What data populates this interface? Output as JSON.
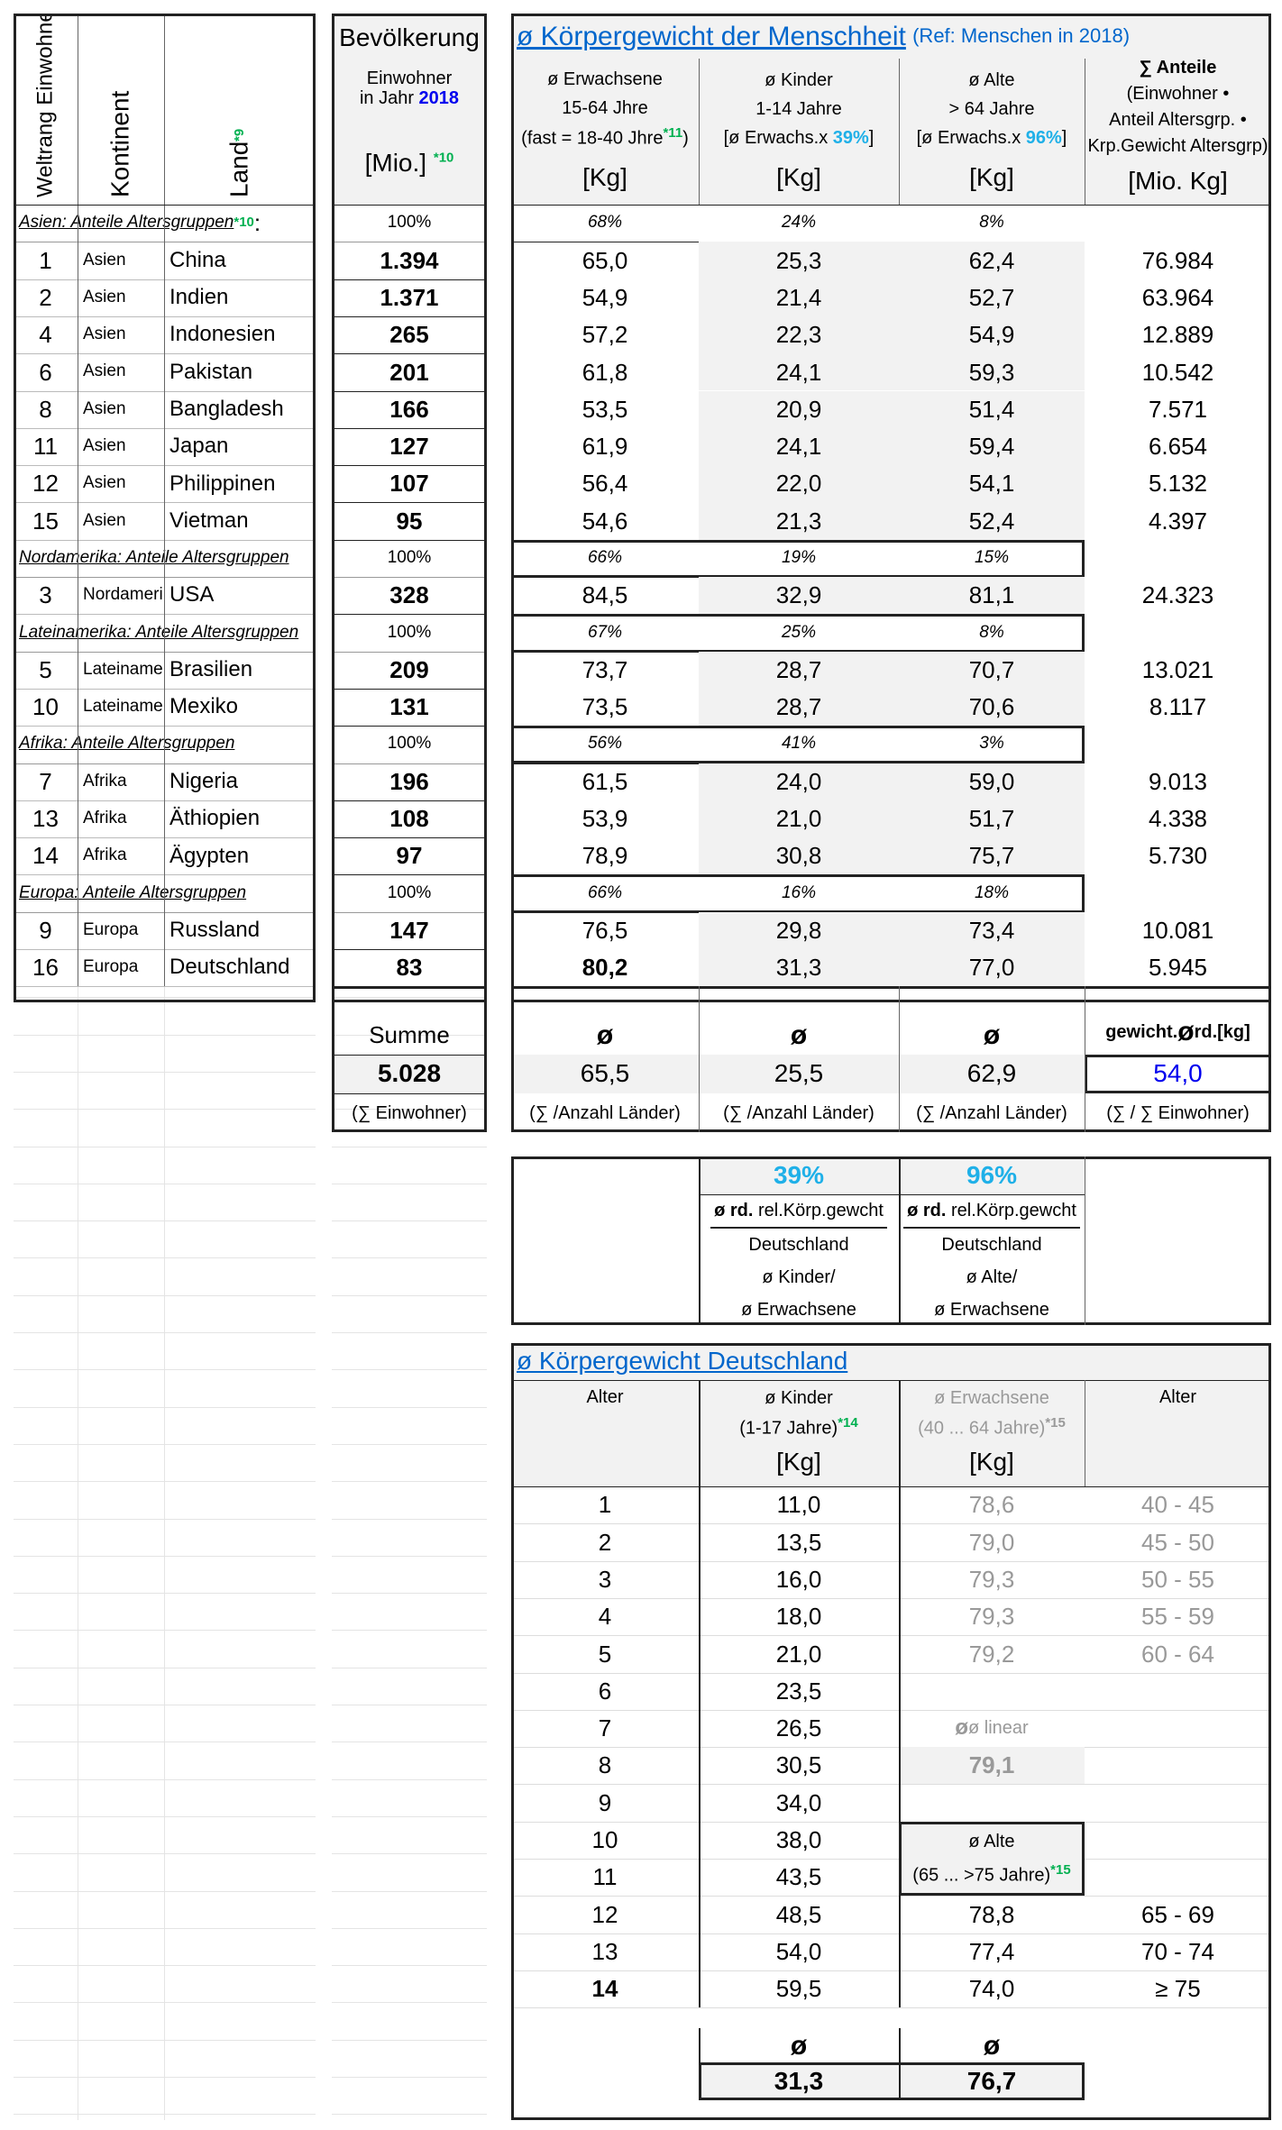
{
  "header": {
    "rank": "Weltrang Einwohner",
    "continent": "Kontinent",
    "land": "Land",
    "land_note": "*9",
    "pop_title": "Bevölkerung",
    "pop_sub1": "Einwohner",
    "pop_sub2": "in Jahr",
    "pop_year": "2018",
    "pop_unit": "[Mio.]",
    "pop_note": "*10",
    "main_title": "ø Körpergewicht der Menschheit",
    "main_ref": "(Ref: Menschen in 2018)",
    "adult": {
      "l1": "ø Erwachsene",
      "l2": "15-64 Jhre",
      "l3": "(fast = 18-40 Jhre",
      "note": "*11",
      "l3end": ")",
      "unit": "[Kg]"
    },
    "child": {
      "l1": "ø Kinder",
      "l2": "1-14 Jahre",
      "l3": "[ø Erwachs.x",
      "pct": "39%",
      "l3end": "]",
      "unit": "[Kg]"
    },
    "old": {
      "l1": "ø Alte",
      "l2": "> 64 Jahre",
      "l3": "[ø Erwachs.x",
      "pct": "96%",
      "l3end": "]",
      "unit": "[Kg]"
    },
    "sum": {
      "l1": "∑ Anteile",
      "l2": "(Einwohner •",
      "l3": "Anteil Altersgrp. •",
      "l4": "Krp.Gewicht Altersgrp)",
      "unit": "[Mio. Kg]"
    }
  },
  "groups": [
    {
      "label": "Asien: Anteile Altersgruppen",
      "note": "*10",
      "suffix": " :",
      "pop": "100%",
      "shares": [
        "68%",
        "24%",
        "8%"
      ],
      "rows": [
        {
          "rank": "1",
          "continent": "Asien",
          "land": "China",
          "pop": "1.394",
          "adult": "65,0",
          "child": "25,3",
          "old": "62,4",
          "sum": "76.984"
        },
        {
          "rank": "2",
          "continent": "Asien",
          "land": "Indien",
          "pop": "1.371",
          "adult": "54,9",
          "child": "21,4",
          "old": "52,7",
          "sum": "63.964"
        },
        {
          "rank": "4",
          "continent": "Asien",
          "land": "Indonesien",
          "pop": "265",
          "adult": "57,2",
          "child": "22,3",
          "old": "54,9",
          "sum": "12.889"
        },
        {
          "rank": "6",
          "continent": "Asien",
          "land": "Pakistan",
          "pop": "201",
          "adult": "61,8",
          "child": "24,1",
          "old": "59,3",
          "sum": "10.542"
        },
        {
          "rank": "8",
          "continent": "Asien",
          "land": "Bangladesh",
          "pop": "166",
          "adult": "53,5",
          "child": "20,9",
          "old": "51,4",
          "sum": "7.571"
        },
        {
          "rank": "11",
          "continent": "Asien",
          "land": "Japan",
          "pop": "127",
          "adult": "61,9",
          "child": "24,1",
          "old": "59,4",
          "sum": "6.654"
        },
        {
          "rank": "12",
          "continent": "Asien",
          "land": "Philippinen",
          "pop": "107",
          "adult": "56,4",
          "child": "22,0",
          "old": "54,1",
          "sum": "5.132"
        },
        {
          "rank": "15",
          "continent": "Asien",
          "land": "Vietman",
          "pop": "95",
          "adult": "54,6",
          "child": "21,3",
          "old": "52,4",
          "sum": "4.397"
        }
      ]
    },
    {
      "label": "Nordamerika: Anteile Altersgruppen",
      "pop": "100%",
      "shares": [
        "66%",
        "19%",
        "15%"
      ],
      "rows": [
        {
          "rank": "3",
          "continent": "Nordamerika",
          "land": "USA",
          "pop": "328",
          "adult": "84,5",
          "child": "32,9",
          "old": "81,1",
          "sum": "24.323"
        }
      ]
    },
    {
      "label": "Lateinamerika: Anteile Altersgruppen",
      "pop": "100%",
      "shares": [
        "67%",
        "25%",
        "8%"
      ],
      "rows": [
        {
          "rank": "5",
          "continent": "Lateinamerika",
          "land": "Brasilien",
          "pop": "209",
          "adult": "73,7",
          "child": "28,7",
          "old": "70,7",
          "sum": "13.021"
        },
        {
          "rank": "10",
          "continent": "Lateinamerika",
          "land": "Mexiko",
          "pop": "131",
          "adult": "73,5",
          "child": "28,7",
          "old": "70,6",
          "sum": "8.117"
        }
      ]
    },
    {
      "label": "Afrika: Anteile Altersgruppen",
      "pop": "100%",
      "shares": [
        "56%",
        "41%",
        "3%"
      ],
      "rows": [
        {
          "rank": "7",
          "continent": "Afrika",
          "land": "Nigeria",
          "pop": "196",
          "adult": "61,5",
          "child": "24,0",
          "old": "59,0",
          "sum": "9.013"
        },
        {
          "rank": "13",
          "continent": "Afrika",
          "land": "Äthiopien",
          "pop": "108",
          "adult": "53,9",
          "child": "21,0",
          "old": "51,7",
          "sum": "4.338"
        },
        {
          "rank": "14",
          "continent": "Afrika",
          "land": "Ägypten",
          "pop": "97",
          "adult": "78,9",
          "child": "30,8",
          "old": "75,7",
          "sum": "5.730"
        }
      ]
    },
    {
      "label": "Europa: Anteile Altersgruppen",
      "pop": "100%",
      "shares": [
        "66%",
        "16%",
        "18%"
      ],
      "rows": [
        {
          "rank": "9",
          "continent": "Europa",
          "land": "Russland",
          "pop": "147",
          "adult": "76,5",
          "child": "29,8",
          "old": "73,4",
          "sum": "10.081"
        },
        {
          "rank": "16",
          "continent": "Europa",
          "land": "Deutschland",
          "pop": "83",
          "adult": "80,2",
          "child": "31,3",
          "old": "77,0",
          "sum": "5.945"
        }
      ]
    }
  ],
  "summary": {
    "pop_label": "Summe",
    "pop_value": "5.028",
    "pop_note": "(∑ Einwohner)",
    "avg_symbol": "ø",
    "adult": "65,5",
    "child": "25,5",
    "old": "62,9",
    "count_note": "(∑ /Anzahl Länder)",
    "weighted_label_a": "gewicht.",
    "weighted_label_b": "rd.[kg]",
    "weighted": "54,0",
    "weighted_note": "(∑ / ∑ Einwohner)"
  },
  "relative": {
    "child_pct": "39%",
    "old_pct": "96%",
    "child_lines": [
      "ø rd.",
      "rel.Körp.gewcht",
      "Deutschland",
      "ø Kinder/",
      "ø Erwachsene"
    ],
    "old_lines": [
      "ø rd.",
      "rel.Körp.gewcht",
      "Deutschland",
      "ø Alte/",
      "ø Erwachsene"
    ]
  },
  "germany": {
    "title": "ø Körpergewicht Deutschland",
    "age_label": "Alter",
    "child_head": [
      "ø Kinder",
      "(1-17 Jahre)",
      "*14",
      "[Kg]"
    ],
    "adult_head": [
      "ø Erwachsene",
      "(40 ... 64 Jahre)",
      "*15",
      "[Kg]"
    ],
    "age_label2": "Alter",
    "rows": [
      {
        "age": "1",
        "child": "11,0",
        "adult": "78,6",
        "range": "40 - 45"
      },
      {
        "age": "2",
        "child": "13,5",
        "adult": "79,0",
        "range": "45 - 50"
      },
      {
        "age": "3",
        "child": "16,0",
        "adult": "79,3",
        "range": "50 - 55"
      },
      {
        "age": "4",
        "child": "18,0",
        "adult": "79,3",
        "range": "55 - 59"
      },
      {
        "age": "5",
        "child": "21,0",
        "adult": "79,2",
        "range": "60 - 64"
      },
      {
        "age": "6",
        "child": "23,5"
      },
      {
        "age": "7",
        "child": "26,5"
      },
      {
        "age": "8",
        "child": "30,5"
      },
      {
        "age": "9",
        "child": "34,0"
      },
      {
        "age": "10",
        "child": "38,0"
      },
      {
        "age": "11",
        "child": "43,5"
      },
      {
        "age": "12",
        "child": "48,5",
        "adult": "78,8",
        "range": "65 - 69"
      },
      {
        "age": "13",
        "child": "54,0",
        "adult": "77,4",
        "range": "70 - 74"
      },
      {
        "age": "14",
        "child": "59,5",
        "adult": "74,0",
        "range": "≥ 75"
      }
    ],
    "linear_label": "ø linear",
    "linear_value": "79,1",
    "old_head": [
      "ø Alte",
      "(65 ... >75 Jahre)",
      "*15"
    ],
    "avg_symbol": "ø",
    "child_avg": "31,3",
    "old_avg": "76,7"
  }
}
